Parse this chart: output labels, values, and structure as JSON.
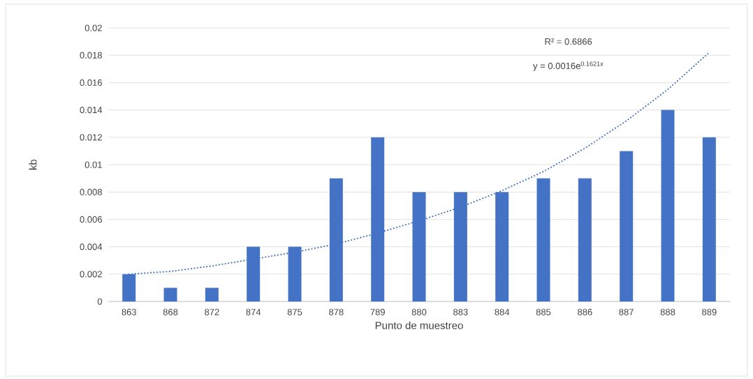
{
  "chart_data": {
    "type": "bar",
    "xlabel": "Punto de muestreo",
    "ylabel": "kb",
    "categories": [
      "863",
      "868",
      "872",
      "874",
      "875",
      "878",
      "789",
      "880",
      "883",
      "884",
      "885",
      "886",
      "887",
      "888",
      "889"
    ],
    "series": [
      {
        "color": "#4472c4",
        "values": [
          0.002,
          0.001,
          0.001,
          0.004,
          0.004,
          0.009,
          0.012,
          0.008,
          0.008,
          0.008,
          0.009,
          0.009,
          0.011,
          0.014,
          0.012
        ]
      },
      {
        "type": "line",
        "color": "#4472c4",
        "line_style": "dotted",
        "values": [
          0.002,
          0.0022,
          0.0026,
          0.0031,
          0.0036,
          0.0042,
          0.005,
          0.0059,
          0.0069,
          0.0081,
          0.0095,
          0.0112,
          0.0132,
          0.0155,
          0.0182
        ]
      }
    ],
    "ylim": [
      0,
      0.02
    ],
    "yticks": [
      0,
      0.002,
      0.004,
      0.006,
      0.008,
      0.01,
      0.012,
      0.014,
      0.016,
      0.018,
      0.02
    ],
    "grid": "y",
    "annotations": [
      "R² = 0.6866",
      "y = 0.0016e$^{0.1621x}$"
    ]
  }
}
